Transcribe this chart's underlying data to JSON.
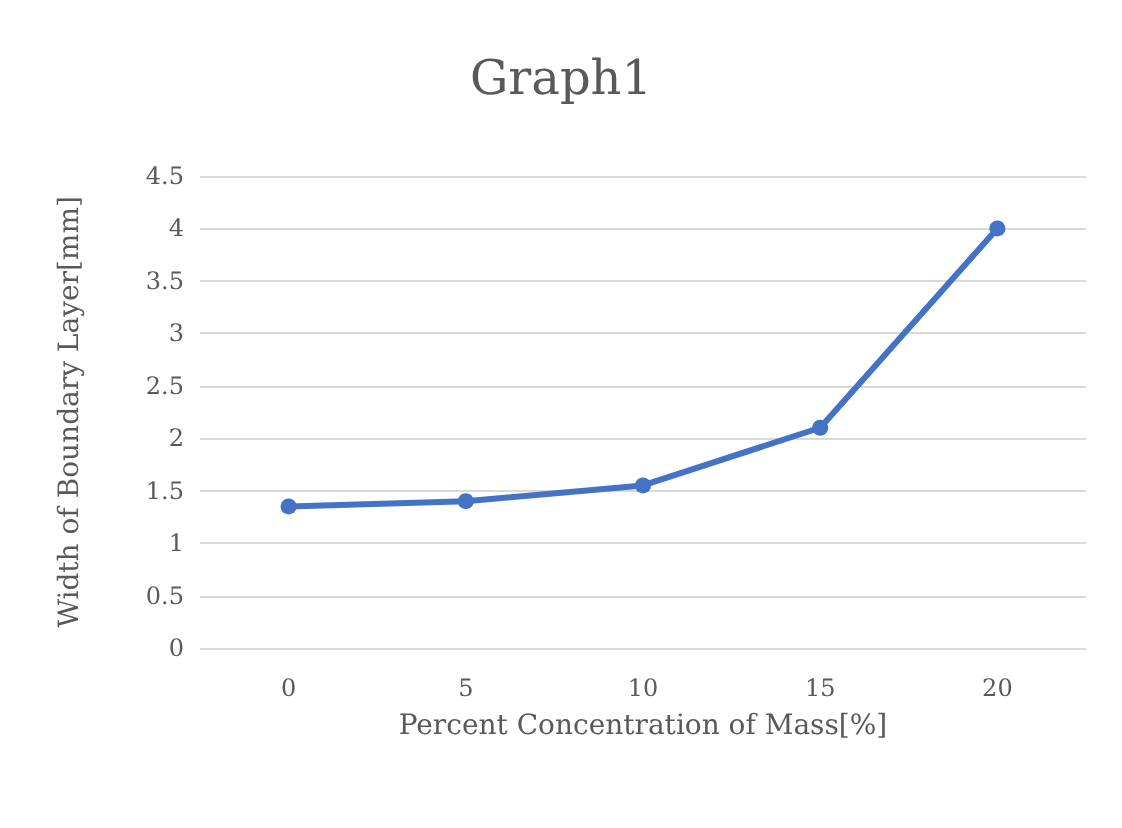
{
  "chart_data": {
    "type": "line",
    "title": "Graph1",
    "xlabel": "Percent Concentration of Mass[%]",
    "ylabel": "Width of Boundary Layer[mm]",
    "categories": [
      "0",
      "5",
      "10",
      "15",
      "20"
    ],
    "series": [
      {
        "color": "#4472c4",
        "values": [
          1.35,
          1.4,
          1.55,
          2.1,
          4.0
        ]
      }
    ],
    "ylim": [
      0,
      4.5
    ],
    "yticks": [
      0,
      0.5,
      1,
      1.5,
      2,
      2.5,
      3,
      3.5,
      4,
      4.5
    ],
    "grid": "y",
    "marker": "circle",
    "line_style": "solid"
  }
}
